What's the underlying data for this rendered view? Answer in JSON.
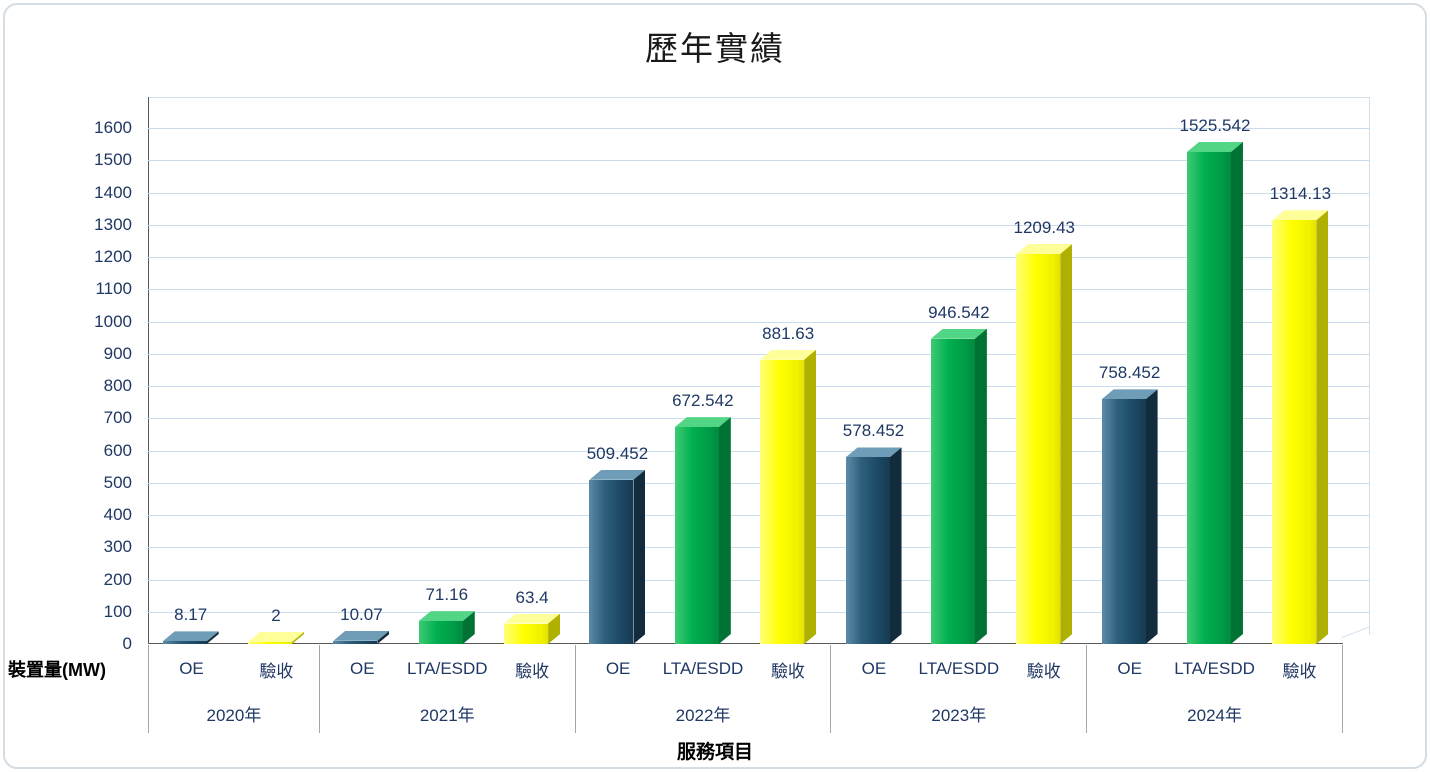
{
  "title": "歷年實績",
  "y_axis_title": "裝置量(MW)",
  "x_axis_title": "服務項目",
  "colors": {
    "oe": "#1f4e66",
    "lta_esdd": "#00b050",
    "acceptance": "#ffff00",
    "gridline": "#c9ddef",
    "label_text": "#1f3864"
  },
  "chart_data": {
    "type": "bar",
    "subtype": "3d-column",
    "title": "歷年實績",
    "xlabel": "服務項目",
    "ylabel": "裝置量(MW)",
    "ylim": [
      0,
      1600
    ],
    "ytick_step": 100,
    "grid": true,
    "legend_position": "none",
    "groups": [
      {
        "year": "2020年",
        "bars": [
          {
            "label": "OE",
            "series": "oe",
            "value": 8.17,
            "display": "8.17"
          },
          {
            "label": "驗收",
            "series": "acc",
            "value": 2,
            "display": "2"
          }
        ]
      },
      {
        "year": "2021年",
        "bars": [
          {
            "label": "OE",
            "series": "oe",
            "value": 10.07,
            "display": "10.07"
          },
          {
            "label": "LTA/ESDD",
            "series": "lta",
            "value": 71.16,
            "display": "71.16"
          },
          {
            "label": "驗收",
            "series": "acc",
            "value": 63.4,
            "display": "63.4"
          }
        ]
      },
      {
        "year": "2022年",
        "bars": [
          {
            "label": "OE",
            "series": "oe",
            "value": 509.452,
            "display": "509.452"
          },
          {
            "label": "LTA/ESDD",
            "series": "lta",
            "value": 672.542,
            "display": "672.542"
          },
          {
            "label": "驗收",
            "series": "acc",
            "value": 881.63,
            "display": "881.63"
          }
        ]
      },
      {
        "year": "2023年",
        "bars": [
          {
            "label": "OE",
            "series": "oe",
            "value": 578.452,
            "display": "578.452"
          },
          {
            "label": "LTA/ESDD",
            "series": "lta",
            "value": 946.542,
            "display": "946.542"
          },
          {
            "label": "驗收",
            "series": "acc",
            "value": 1209.43,
            "display": "1209.43"
          }
        ]
      },
      {
        "year": "2024年",
        "bars": [
          {
            "label": "OE",
            "series": "oe",
            "value": 758.452,
            "display": "758.452"
          },
          {
            "label": "LTA/ESDD",
            "series": "lta",
            "value": 1525.542,
            "display": "1525.542"
          },
          {
            "label": "驗收",
            "series": "acc",
            "value": 1314.13,
            "display": "1314.13"
          }
        ]
      }
    ]
  }
}
